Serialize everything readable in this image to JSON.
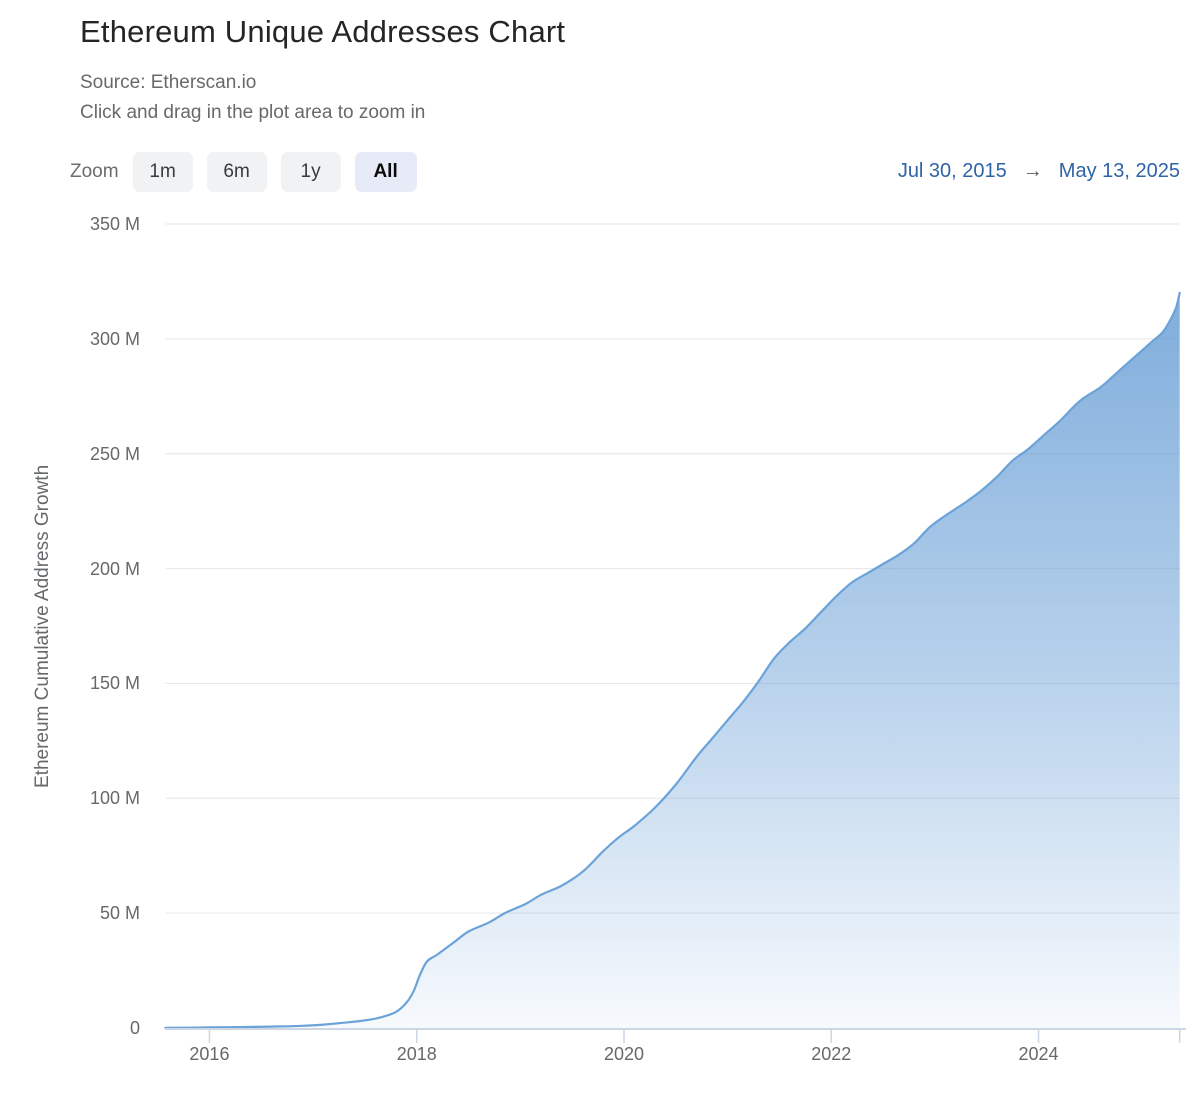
{
  "header": {
    "title": "Ethereum Unique Addresses Chart",
    "source_line": "Source: Etherscan.io",
    "hint_line": "Click and drag in the plot area to zoom in"
  },
  "zoom": {
    "label": "Zoom",
    "buttons": [
      {
        "label": "1m",
        "selected": false
      },
      {
        "label": "6m",
        "selected": false
      },
      {
        "label": "1y",
        "selected": false
      },
      {
        "label": "All",
        "selected": true
      }
    ]
  },
  "date_range": {
    "from": "Jul 30, 2015",
    "arrow": "→",
    "to": "May 13, 2025"
  },
  "colors": {
    "line": "#6ba3d9",
    "fill_base": "#5b96d2",
    "grid": "#e6e6e6",
    "axis": "#ccd6e4",
    "date_link": "#2f63a7",
    "button_bg": "#f1f2f3",
    "button_selected_bg": "#e7ebf7"
  },
  "chart_data": {
    "type": "area",
    "title": "Ethereum Unique Addresses Chart",
    "ylabel": "Ethereum Cumulative Address Growth",
    "xlabel": "",
    "unit": "millions of unique addresses",
    "grid": true,
    "legend": "none",
    "x_range_years": [
      2015.575,
      2025.362
    ],
    "x_range_labels": [
      "Jul 30, 2015",
      "May 13, 2025"
    ],
    "ylim": [
      0,
      350
    ],
    "y_ticks": [
      {
        "value": 0,
        "label": "0"
      },
      {
        "value": 50,
        "label": "50 M"
      },
      {
        "value": 100,
        "label": "100 M"
      },
      {
        "value": 150,
        "label": "150 M"
      },
      {
        "value": 200,
        "label": "200 M"
      },
      {
        "value": 250,
        "label": "250 M"
      },
      {
        "value": 300,
        "label": "300 M"
      },
      {
        "value": 350,
        "label": "350 M"
      }
    ],
    "x_ticks": [
      {
        "value": 2016,
        "label": "2016"
      },
      {
        "value": 2018,
        "label": "2018"
      },
      {
        "value": 2020,
        "label": "2020"
      },
      {
        "value": 2022,
        "label": "2022"
      },
      {
        "value": 2024,
        "label": "2024"
      },
      {
        "value": 2025.362,
        "label": ""
      }
    ],
    "series": [
      {
        "name": "Ethereum Cumulative Address Growth",
        "points_format": "[decimal_year, millions_of_addresses]",
        "points": [
          [
            2015.575,
            0.1
          ],
          [
            2015.8,
            0.15
          ],
          [
            2016.0,
            0.25
          ],
          [
            2016.3,
            0.4
          ],
          [
            2016.6,
            0.6
          ],
          [
            2016.9,
            0.95
          ],
          [
            2017.1,
            1.5
          ],
          [
            2017.3,
            2.3
          ],
          [
            2017.5,
            3.3
          ],
          [
            2017.65,
            4.6
          ],
          [
            2017.8,
            7
          ],
          [
            2017.9,
            11
          ],
          [
            2017.97,
            16
          ],
          [
            2018.03,
            23
          ],
          [
            2018.1,
            29
          ],
          [
            2018.2,
            32
          ],
          [
            2018.35,
            37
          ],
          [
            2018.5,
            42
          ],
          [
            2018.7,
            46
          ],
          [
            2018.85,
            50
          ],
          [
            2019.05,
            54
          ],
          [
            2019.2,
            58
          ],
          [
            2019.4,
            62
          ],
          [
            2019.6,
            68
          ],
          [
            2019.8,
            77
          ],
          [
            2019.95,
            83
          ],
          [
            2020.1,
            88
          ],
          [
            2020.3,
            96
          ],
          [
            2020.5,
            106
          ],
          [
            2020.7,
            118
          ],
          [
            2020.85,
            126
          ],
          [
            2021.0,
            134
          ],
          [
            2021.15,
            142
          ],
          [
            2021.3,
            151
          ],
          [
            2021.45,
            161
          ],
          [
            2021.6,
            168
          ],
          [
            2021.75,
            174
          ],
          [
            2021.9,
            181
          ],
          [
            2022.05,
            188
          ],
          [
            2022.2,
            194
          ],
          [
            2022.35,
            198
          ],
          [
            2022.5,
            202
          ],
          [
            2022.65,
            206
          ],
          [
            2022.8,
            211
          ],
          [
            2022.95,
            218
          ],
          [
            2023.1,
            223
          ],
          [
            2023.3,
            229
          ],
          [
            2023.45,
            234
          ],
          [
            2023.6,
            240
          ],
          [
            2023.75,
            247
          ],
          [
            2023.9,
            252
          ],
          [
            2024.05,
            258
          ],
          [
            2024.2,
            264
          ],
          [
            2024.4,
            273
          ],
          [
            2024.6,
            279
          ],
          [
            2024.75,
            285
          ],
          [
            2024.9,
            291
          ],
          [
            2025.0,
            295
          ],
          [
            2025.1,
            299
          ],
          [
            2025.2,
            303
          ],
          [
            2025.28,
            309
          ],
          [
            2025.33,
            314
          ],
          [
            2025.362,
            320
          ]
        ]
      }
    ]
  }
}
